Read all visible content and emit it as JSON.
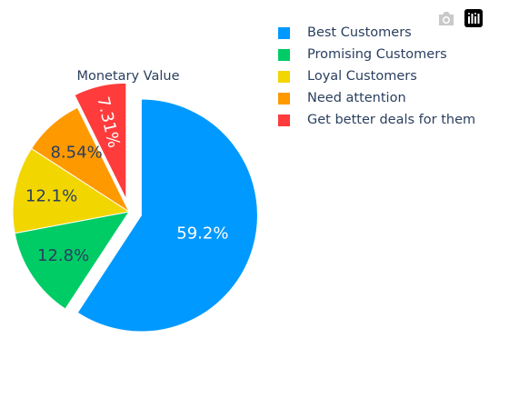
{
  "chart_data": {
    "type": "pie",
    "title": "Monetary Value",
    "categories": [
      "Best Customers",
      "Promising Customers",
      "Loyal Customers",
      "Need attention",
      "Get better deals for them"
    ],
    "values": [
      59.2,
      12.8,
      12.1,
      8.54,
      7.31
    ],
    "labels": [
      "59.2%",
      "12.8%",
      "12.1%",
      "8.54%",
      "7.31%"
    ],
    "colors": [
      "#0099ff",
      "#00cc66",
      "#f2d600",
      "#ff9900",
      "#ff3b3b"
    ],
    "label_colors": [
      "#ffffff",
      "#2a3f5f",
      "#2a3f5f",
      "#2a3f5f",
      "#ffffff"
    ],
    "pulled": [
      "Best Customers",
      "Get better deals for them"
    ],
    "legend_position": "top-right",
    "direction": "clockwise"
  },
  "modebar": {
    "icons": [
      "camera-icon",
      "plotly-logo-icon"
    ]
  }
}
